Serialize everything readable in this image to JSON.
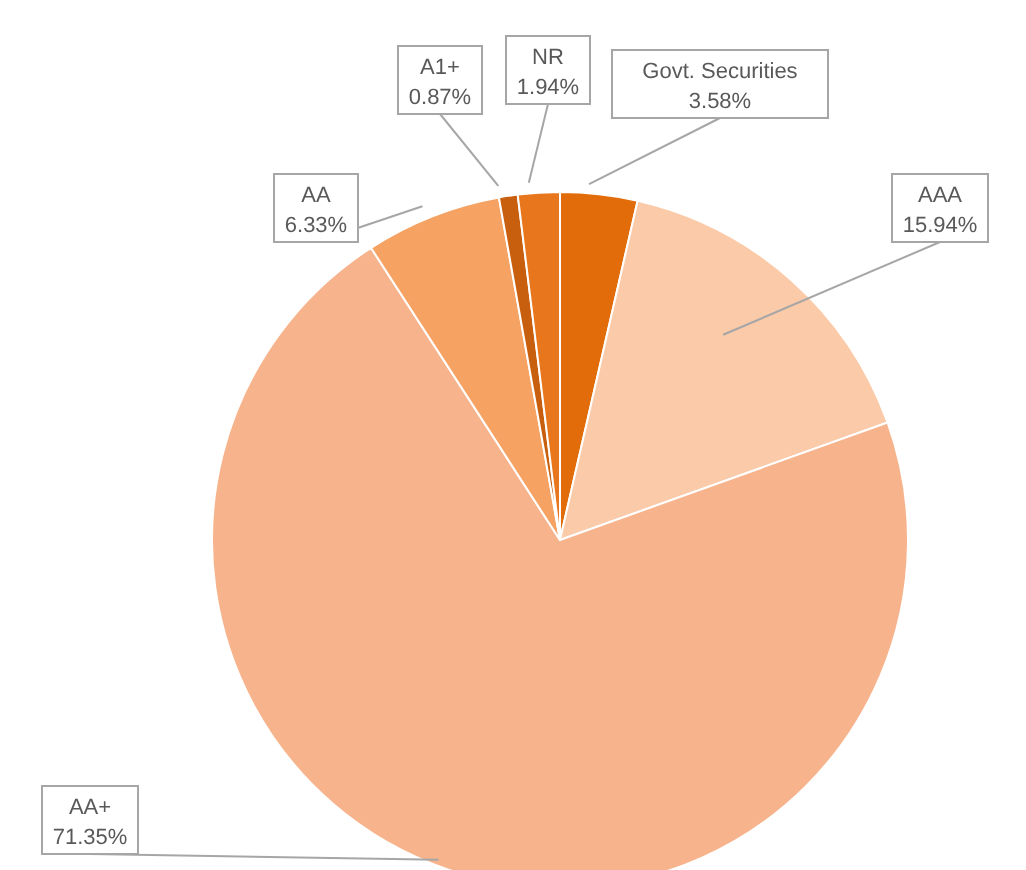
{
  "chart_data": {
    "type": "pie",
    "categories": [
      "Govt. Securities",
      "AAA",
      "AA+",
      "AA",
      "A1+",
      "NR"
    ],
    "values": [
      3.58,
      15.94,
      71.35,
      6.33,
      0.87,
      1.94
    ],
    "value_labels": [
      "3.58%",
      "15.94%",
      "71.35%",
      "6.33%",
      "0.87%",
      "1.94%"
    ],
    "colors": [
      "#e36c0a",
      "#fbcaa9",
      "#f7b48c",
      "#f5a263",
      "#c85f0f",
      "#e8761c"
    ],
    "legend": false
  }
}
